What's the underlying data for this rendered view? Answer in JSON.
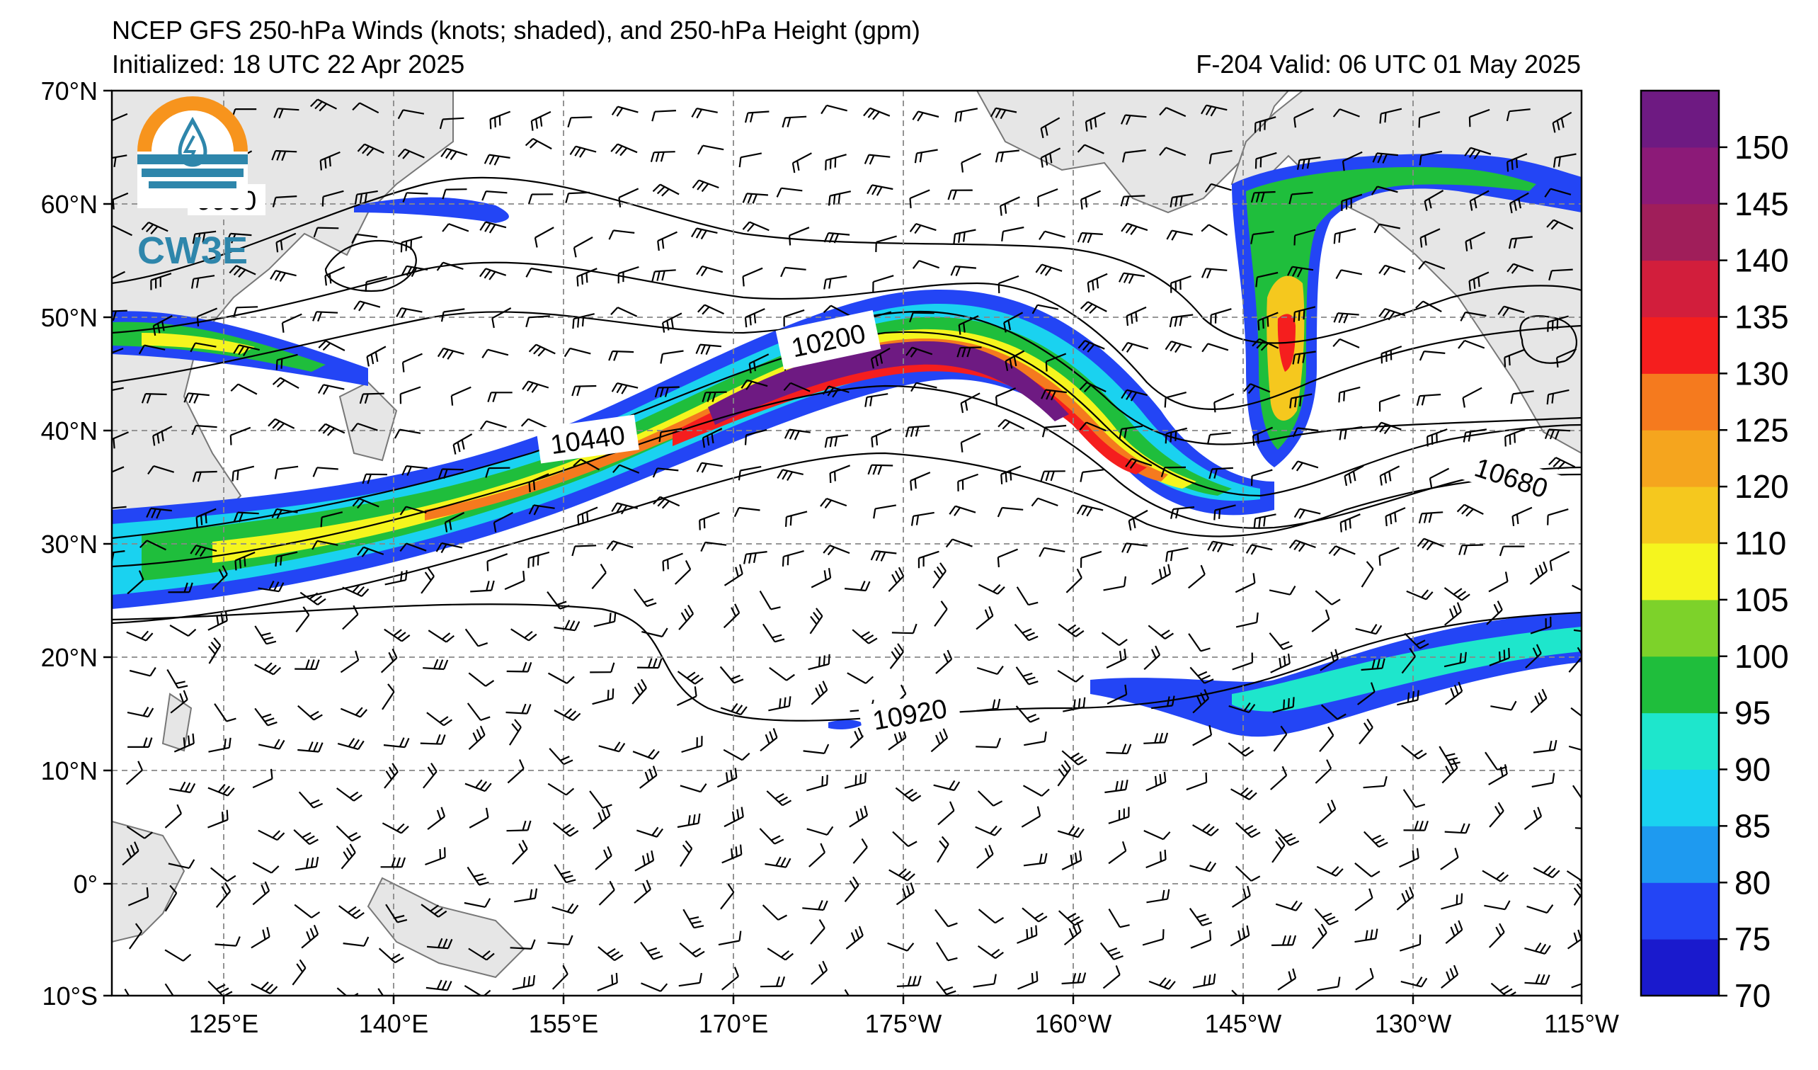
{
  "header": {
    "title": "NCEP GFS 250-hPa Winds (knots; shaded), and 250-hPa Height (gpm)",
    "initialized": "Initialized: 18 UTC 22 Apr 2025",
    "valid": "F-204  Valid: 06 UTC 01 May 2025"
  },
  "logo": {
    "text": "CW3E",
    "colors": [
      "#f7941d",
      "#2e86ab"
    ]
  },
  "axes": {
    "lat_labels": [
      "70°N",
      "60°N",
      "50°N",
      "40°N",
      "30°N",
      "20°N",
      "10°N",
      "0°",
      "10°S"
    ],
    "lon_labels": [
      "125°E",
      "140°E",
      "155°E",
      "170°E",
      "175°W",
      "160°W",
      "145°W",
      "130°W",
      "115°W"
    ]
  },
  "contour_labels": [
    "10200",
    "10440",
    "10680",
    "10920",
    "9960"
  ],
  "colorbar": {
    "ticks": [
      "150",
      "145",
      "140",
      "135",
      "130",
      "125",
      "120",
      "110",
      "105",
      "100",
      "95",
      "90",
      "85",
      "80",
      "75",
      "70"
    ],
    "colors": [
      "#1a1acd",
      "#2345f5",
      "#1e9af0",
      "#1ad2f0",
      "#1ee6cc",
      "#1fbe3c",
      "#7dd22a",
      "#f5f51e",
      "#f5c81e",
      "#f5a51e",
      "#f57a1e",
      "#f51e1e",
      "#d21e3c",
      "#a01e5a",
      "#8c1a78",
      "#6e1a82"
    ]
  }
}
